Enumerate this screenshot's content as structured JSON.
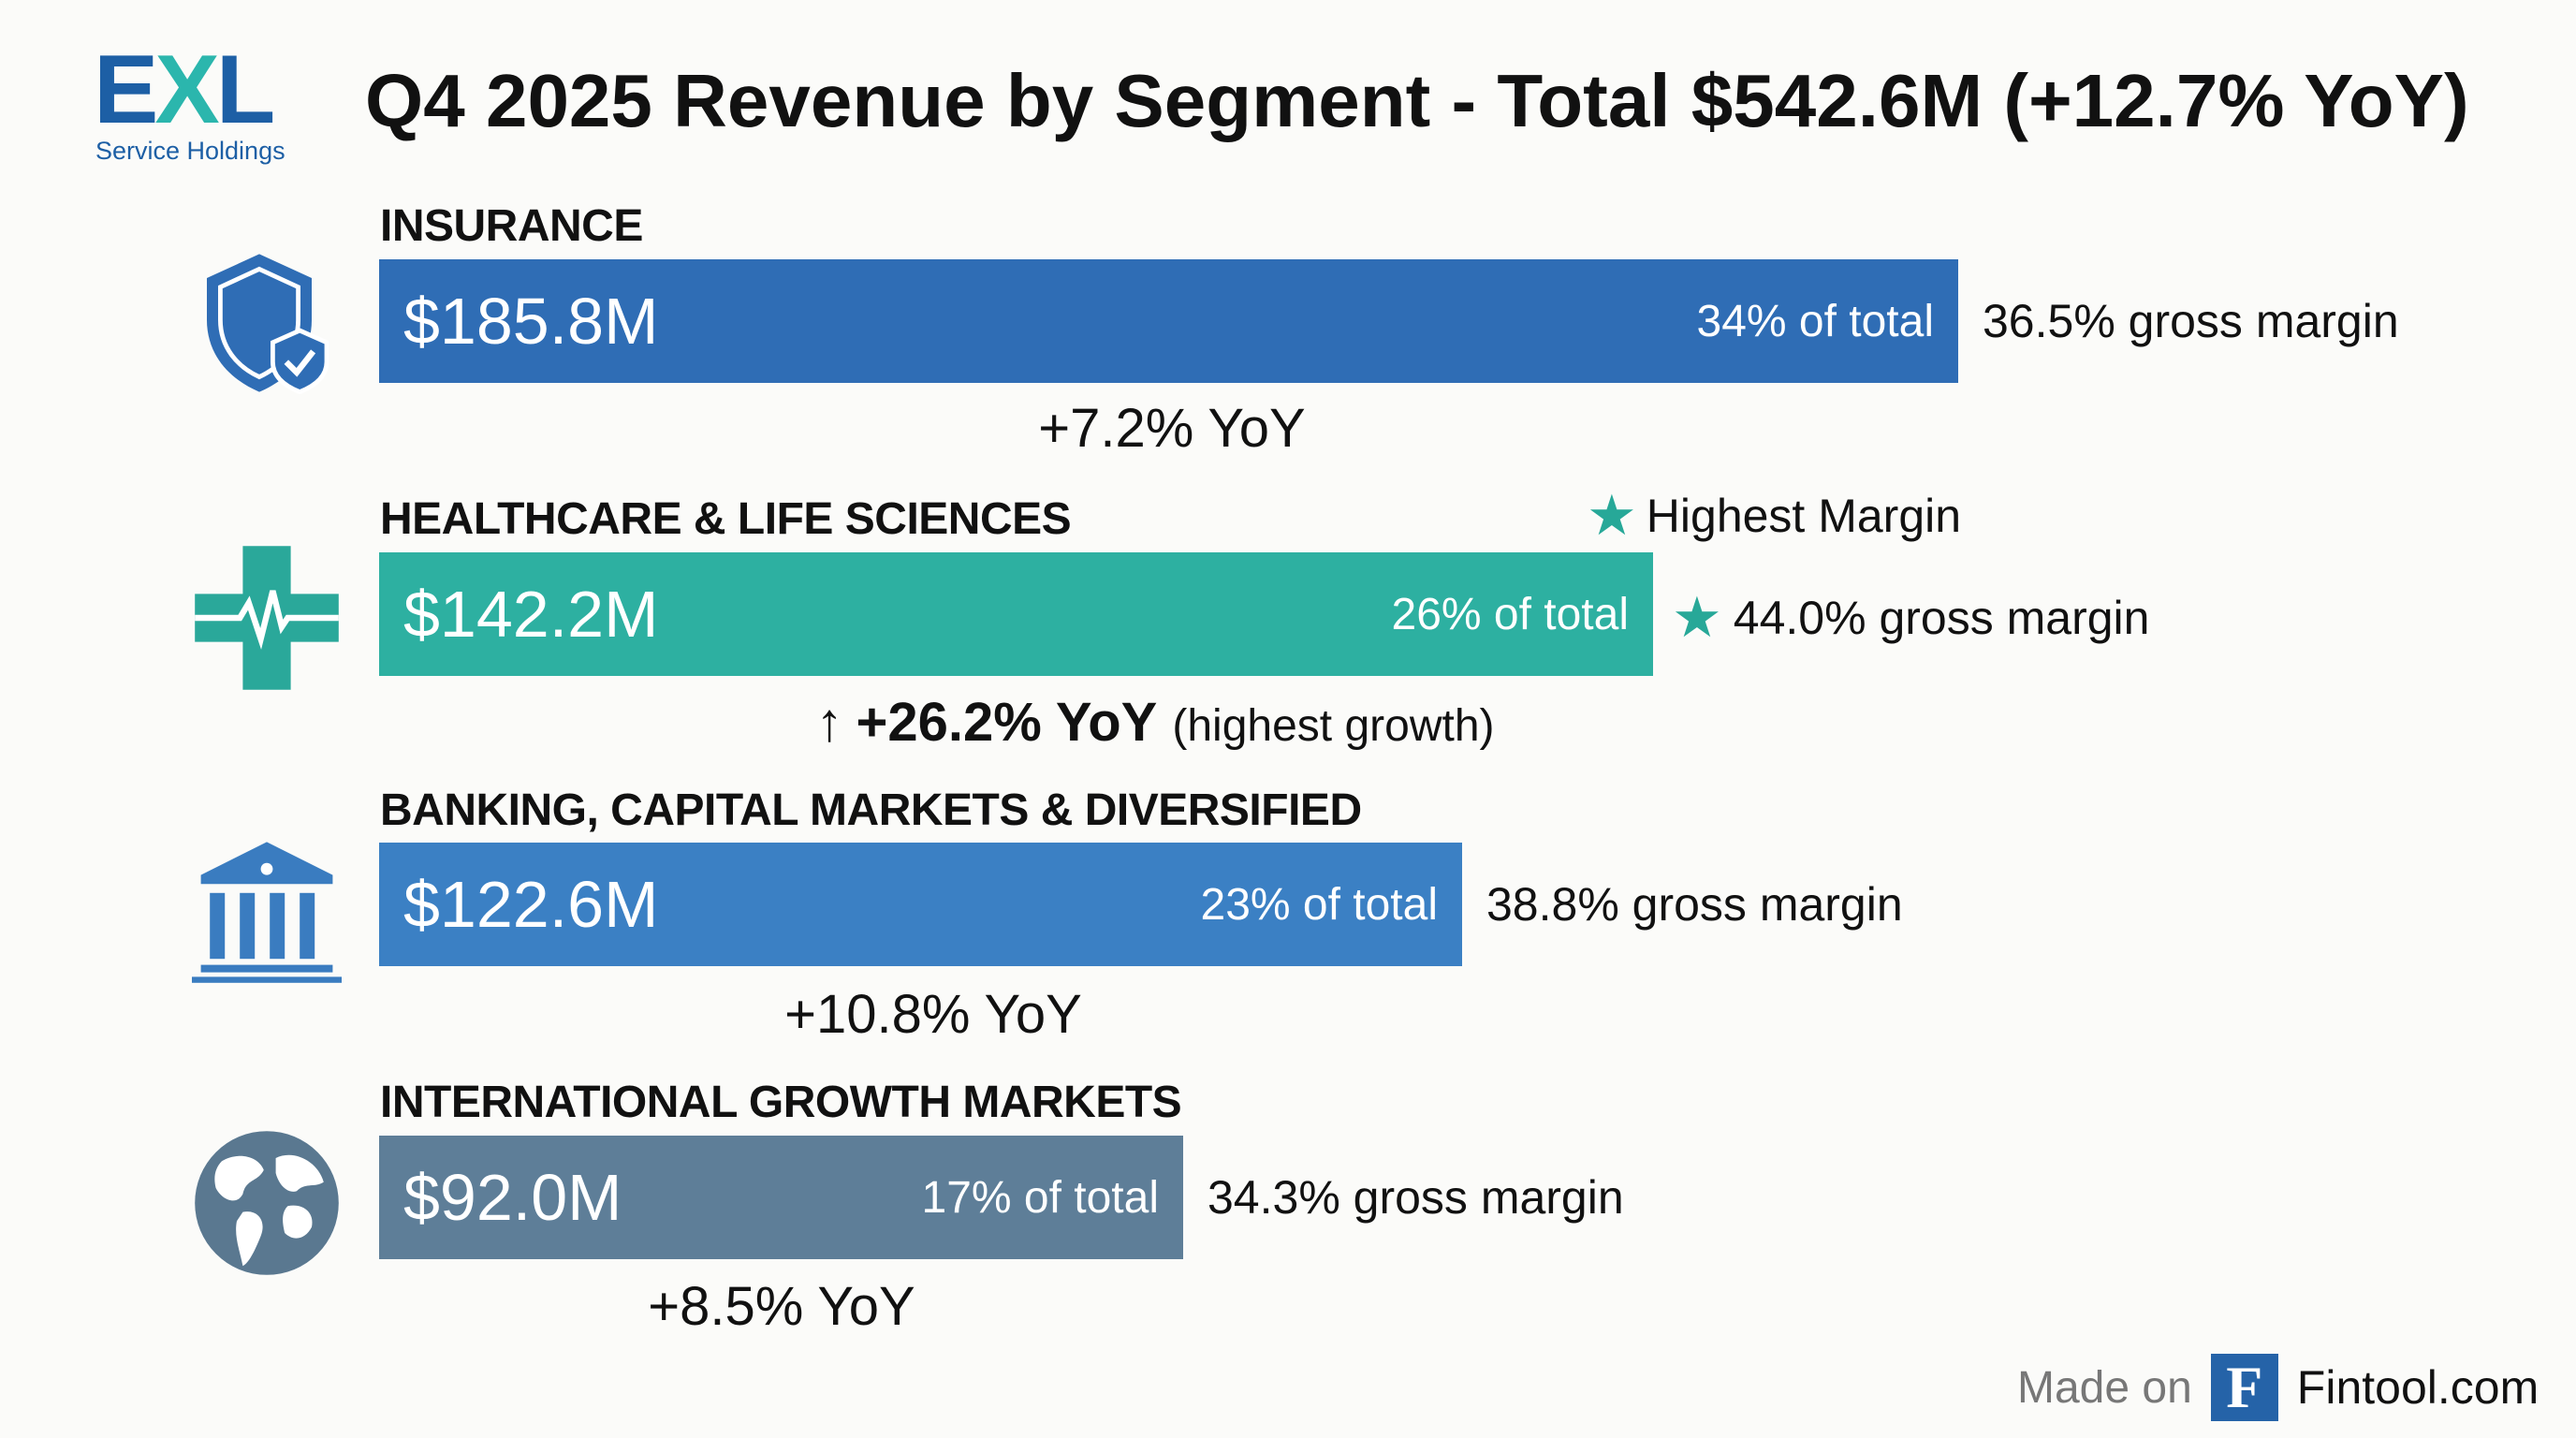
{
  "logo": {
    "text_e": "E",
    "text_x": "X",
    "text_l": "L",
    "subtitle": "Service Holdings"
  },
  "chart_data": {
    "type": "bar",
    "orientation": "horizontal",
    "title": "Q4 2025 Revenue by Segment - Total $542.6M (+12.7% YoY)",
    "categories": [
      "INSURANCE",
      "HEALTHCARE & LIFE SCIENCES",
      "BANKING, CAPITAL MARKETS & DIVERSIFIED",
      "INTERNATIONAL GROWTH MARKETS"
    ],
    "values": [
      185.8,
      142.2,
      122.6,
      92.0
    ],
    "unit": "$M",
    "segments": [
      {
        "name": "INSURANCE",
        "value_label": "$185.8M",
        "share_label": "34% of total",
        "margin_label": "36.5% gross margin",
        "yoy_label": "+7.2% YoY",
        "icon": "shield-check-icon",
        "color": "#2f6db5"
      },
      {
        "name": "HEALTHCARE & LIFE SCIENCES",
        "value_label": "$142.2M",
        "share_label": "26% of total",
        "margin_label": "44.0% gross margin",
        "yoy_label": "+26.2% YoY",
        "yoy_note": "(highest growth)",
        "badge": "Highest Margin",
        "icon": "medical-cross-icon",
        "color": "#2db0a1"
      },
      {
        "name": "BANKING, CAPITAL MARKETS & DIVERSIFIED",
        "value_label": "$122.6M",
        "share_label": "23% of total",
        "margin_label": "38.8% gross margin",
        "yoy_label": "+10.8% YoY",
        "icon": "bank-icon",
        "color": "#3b80c4"
      },
      {
        "name": "INTERNATIONAL GROWTH MARKETS",
        "value_label": "$92.0M",
        "share_label": "17% of total",
        "margin_label": "34.3% gross margin",
        "yoy_label": "+8.5% YoY",
        "icon": "globe-icon",
        "color": "#5e7e98"
      }
    ]
  },
  "footer": {
    "made_on": "Made on",
    "logo_letter": "F",
    "site": "Fintool.com"
  }
}
